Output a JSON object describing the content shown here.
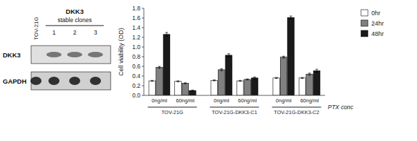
{
  "chart_data": [
    {
      "type": "bar",
      "ylabel": "Cell viability (OD)",
      "xlabel": "PTX conc",
      "categories": [
        "0ng/ml",
        "60ng/ml",
        "0ng/ml",
        "60ng/ml",
        "0ng/ml",
        "60ng/ml"
      ],
      "annotations": [
        "TOV-21G",
        "TOV-21G-DKK3-C1",
        "TOV-21G-DKK3-C2"
      ],
      "series": [
        {
          "name": "0hr",
          "color": "#ffffff",
          "values": [
            0.3,
            0.29,
            0.31,
            0.3,
            0.36,
            0.36
          ],
          "errors": [
            0.01,
            0.01,
            0.01,
            0.01,
            0.01,
            0.01
          ]
        },
        {
          "name": "24hr",
          "color": "#808080",
          "values": [
            0.58,
            0.25,
            0.53,
            0.33,
            0.79,
            0.44
          ],
          "errors": [
            0.02,
            0.01,
            0.02,
            0.01,
            0.02,
            0.02
          ]
        },
        {
          "name": "48hr",
          "color": "#1a1a1a",
          "values": [
            1.26,
            0.1,
            0.83,
            0.36,
            1.61,
            0.51
          ],
          "errors": [
            0.04,
            0.01,
            0.03,
            0.02,
            0.03,
            0.03
          ]
        }
      ],
      "ylim": [
        0,
        1.8
      ],
      "yticks": [
        {
          "value": 0,
          "label": "0.0"
        },
        0.2,
        0.4,
        0.6,
        0.8,
        {
          "value": 1.0,
          "label": "1.0"
        },
        1.2,
        1.4,
        1.6,
        1.8
      ],
      "grid": false,
      "legend": "right"
    },
    {
      "type": "blot",
      "title": "DKK3",
      "subtitle": "stable clones",
      "categories": [
        "TOV-21G",
        "1",
        "2",
        "3"
      ],
      "series": [
        {
          "name": "DKK3"
        },
        {
          "name": "GAPDH"
        }
      ]
    }
  ]
}
